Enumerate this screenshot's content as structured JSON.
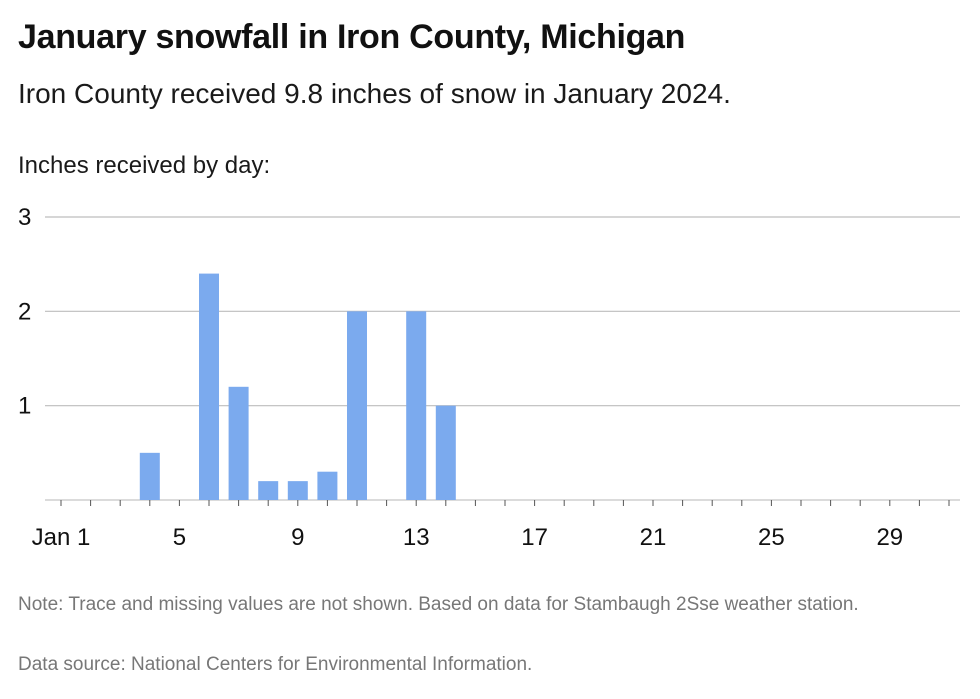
{
  "title": "January snowfall in Iron County, Michigan",
  "subtitle": "Iron County received 9.8 inches of snow in January 2024.",
  "note": "Note: Trace and missing values are not shown. Based on data for Stambaugh 2Sse weather station.",
  "source": "Data source: National Centers for Environmental Information.",
  "colors": {
    "bar": "#7baaee",
    "grid": "#bdbdbd",
    "axis": "#cfcfcf"
  },
  "chart_data": {
    "type": "bar",
    "title": "January snowfall in Iron County, Michigan",
    "subtitle": "Iron County received 9.8 inches of snow in January 2024.",
    "ylabel": "Inches received by day:",
    "xlabel": "",
    "x": [
      4,
      6,
      7,
      8,
      9,
      10,
      11,
      13,
      14
    ],
    "values": [
      0.5,
      2.4,
      1.2,
      0.2,
      0.2,
      0.3,
      2.0,
      2.0,
      1.0
    ],
    "xlim": [
      1,
      31
    ],
    "ylim": [
      0,
      3
    ],
    "yticks": [
      1,
      2,
      3
    ],
    "xticks": [
      1,
      5,
      9,
      13,
      17,
      21,
      25,
      29
    ],
    "xtick_labels": [
      "Jan 1",
      "5",
      "9",
      "13",
      "17",
      "21",
      "25",
      "29"
    ],
    "grid": true
  }
}
